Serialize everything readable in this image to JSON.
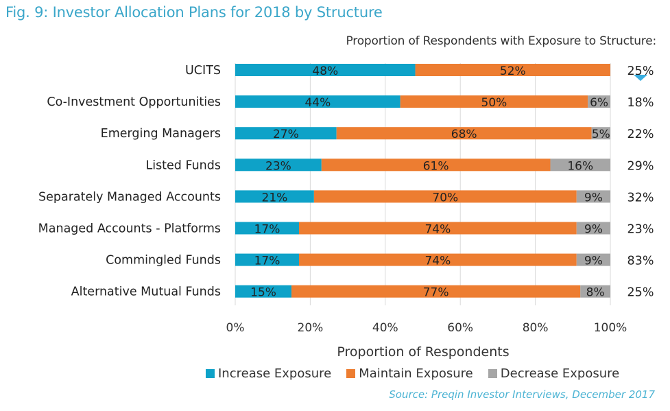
{
  "title": "Fig. 9: Investor Allocation Plans for 2018 by Structure",
  "source": "Source: Preqin Investor Interviews, December 2017",
  "colors": {
    "title": "#3aa6c9",
    "increase": "#0ea2c8",
    "maintain": "#ed7d31",
    "decrease": "#a6a6a6",
    "marker": "#3aaee0"
  },
  "chart_data": {
    "type": "bar",
    "orientation": "horizontal",
    "stacked": true,
    "title": "Fig. 9: Investor Allocation Plans for 2018 by Structure",
    "xlabel": "Proportion of Respondents",
    "ylabel": "",
    "xlim": [
      0,
      100
    ],
    "x_ticks": [
      "0%",
      "20%",
      "40%",
      "60%",
      "80%",
      "100%"
    ],
    "grid": true,
    "legend_position": "bottom",
    "categories": [
      "UCITS",
      "Co-Investment Opportunities",
      "Emerging Managers",
      "Listed Funds",
      "Separately Managed Accounts",
      "Managed Accounts - Platforms",
      "Commingled Funds",
      "Alternative Mutual Funds"
    ],
    "series": [
      {
        "name": "Increase Exposure",
        "key": "increase",
        "values": [
          48,
          44,
          27,
          23,
          21,
          17,
          17,
          15
        ]
      },
      {
        "name": "Maintain Exposure",
        "key": "maintain",
        "values": [
          52,
          50,
          68,
          61,
          70,
          74,
          74,
          77
        ]
      },
      {
        "name": "Decrease Exposure",
        "key": "decrease",
        "values": [
          0,
          6,
          5,
          16,
          9,
          9,
          9,
          8
        ]
      }
    ],
    "side_column": {
      "header": "Proportion of Respondents with Exposure to Structure:",
      "values": [
        "25%",
        "18%",
        "22%",
        "29%",
        "32%",
        "23%",
        "83%",
        "25%"
      ]
    }
  }
}
